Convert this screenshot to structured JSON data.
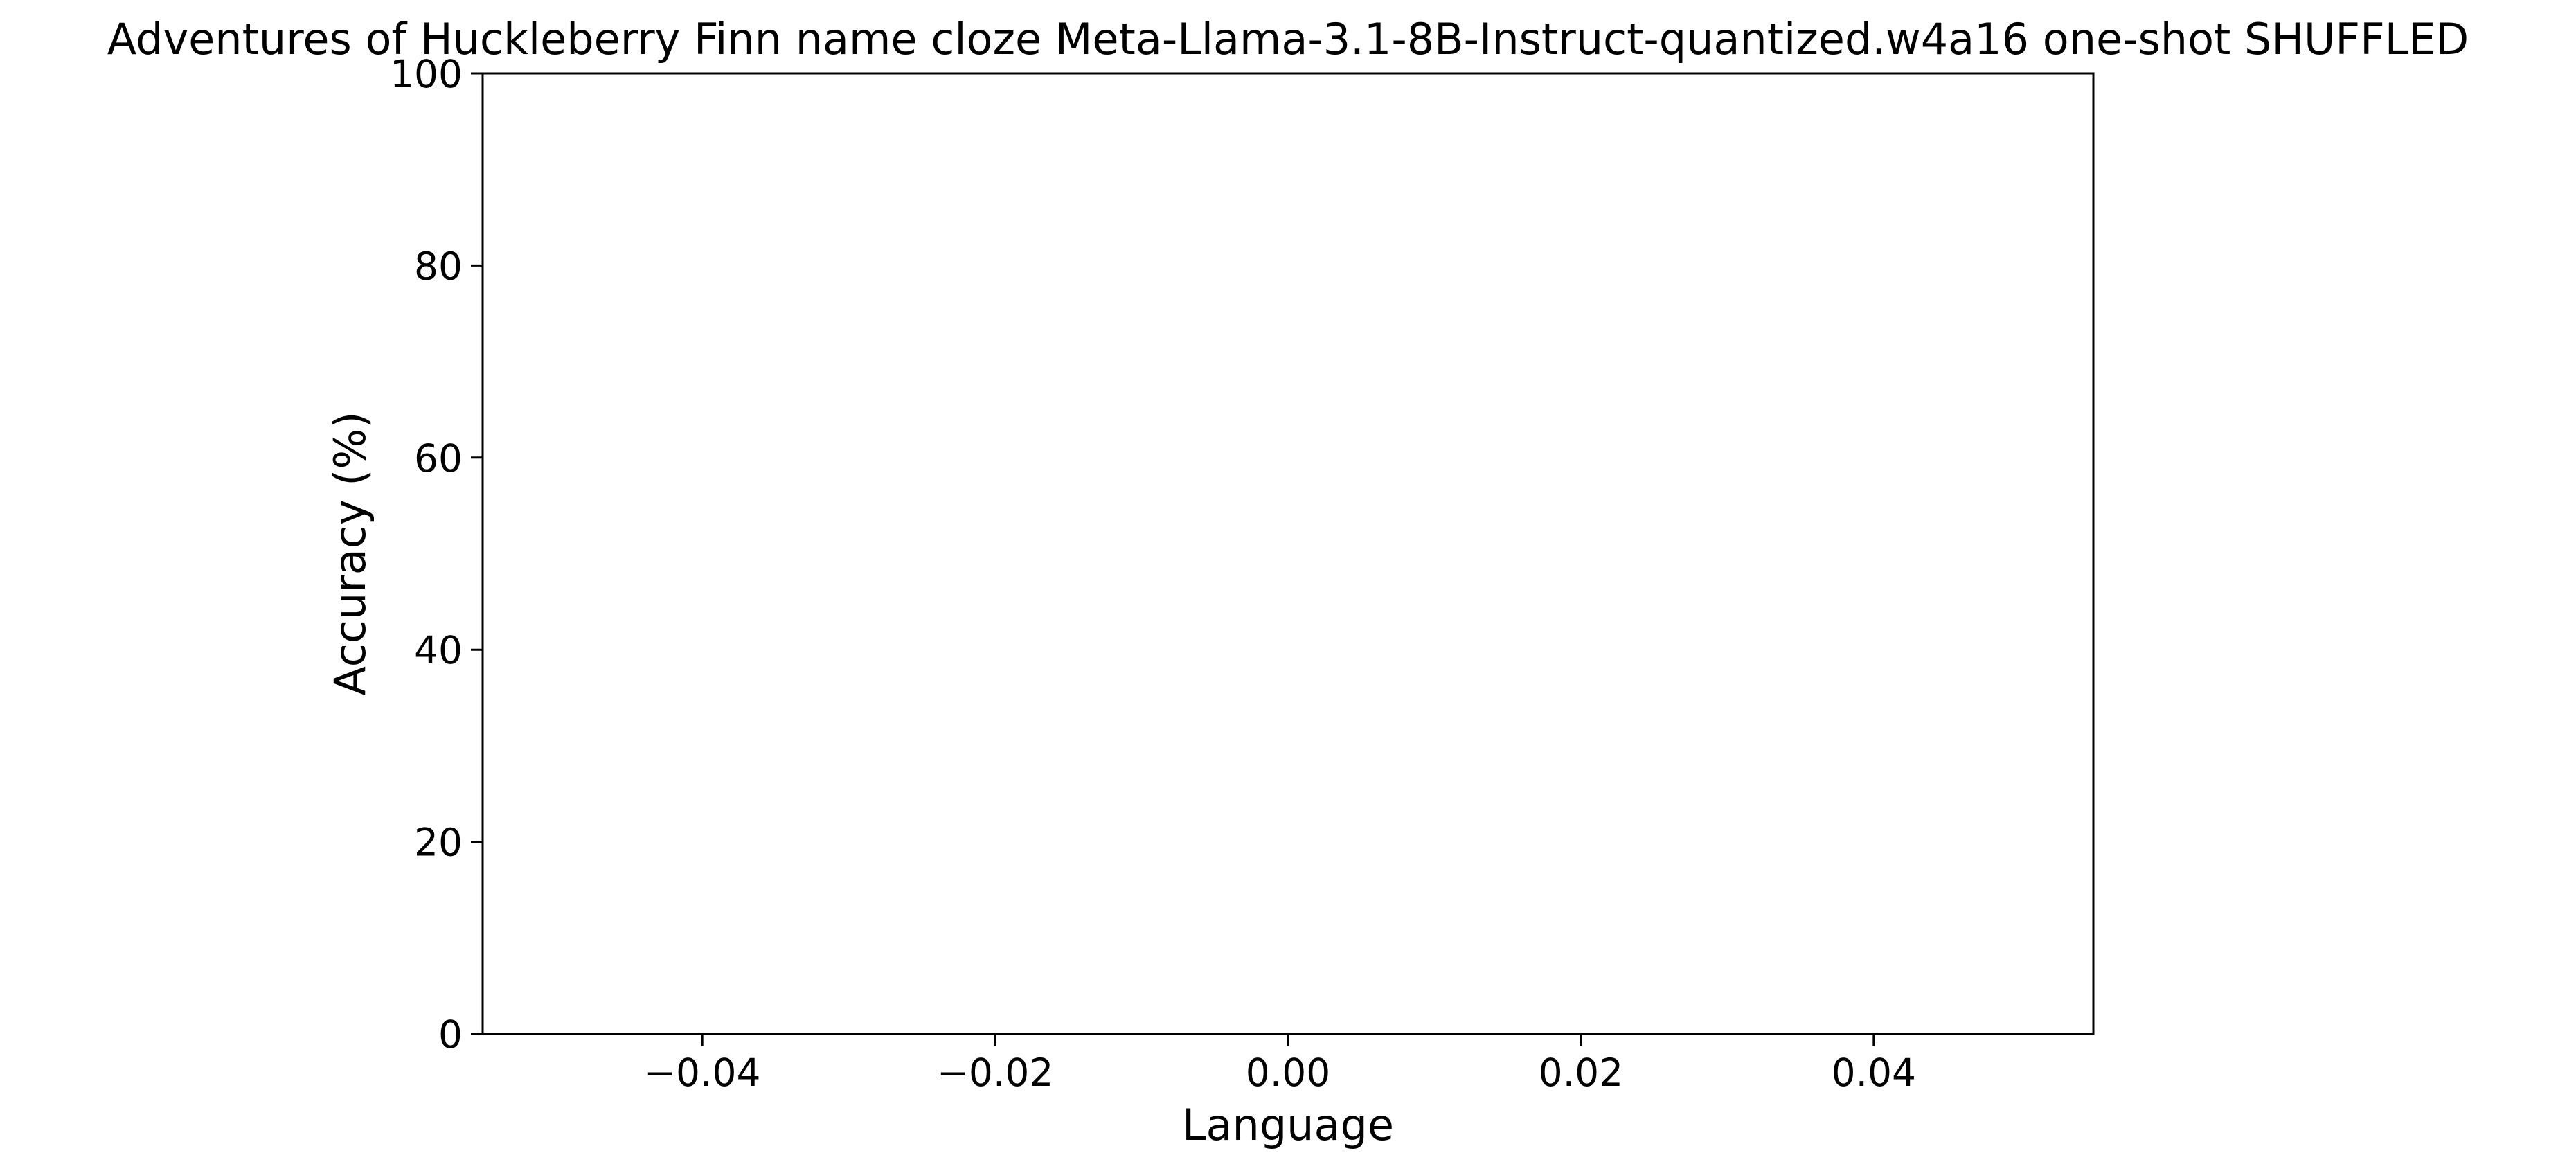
{
  "chart_data": {
    "type": "bar",
    "title": "Adventures of Huckleberry Finn name cloze Meta-Llama-3.1-8B-Instruct-quantized.w4a16 one-shot SHUFFLED",
    "xlabel": "Language",
    "ylabel": "Accuracy (%)",
    "categories": [],
    "values": [],
    "xlim": [
      -0.055,
      0.055
    ],
    "ylim": [
      0,
      100
    ],
    "x_ticks": [
      -0.04,
      -0.02,
      0.0,
      0.02,
      0.04
    ],
    "x_tick_labels": [
      "−0.04",
      "−0.02",
      "0.00",
      "0.02",
      "0.04"
    ],
    "y_ticks": [
      0,
      20,
      40,
      60,
      80,
      100
    ],
    "y_tick_labels": [
      "0",
      "20",
      "40",
      "60",
      "80",
      "100"
    ],
    "grid": false,
    "legend": "none"
  }
}
